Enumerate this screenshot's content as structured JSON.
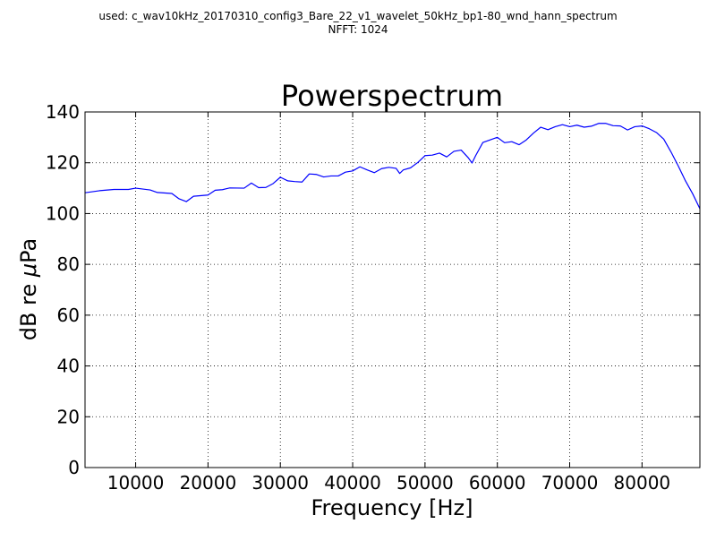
{
  "header": {
    "line1": "used: c_wav10kHz_20170310_config3_Bare_22_v1_wavelet_50kHz_bp1-80_wnd_hann_spectrum",
    "line2": "NFFT: 1024"
  },
  "colors": {
    "line": "#0000ff",
    "grid": "#000000",
    "axis": "#000000",
    "background": "#ffffff"
  },
  "chart_data": {
    "type": "line",
    "title": "Powerspectrum",
    "xlabel": "Frequency [Hz]",
    "ylabel_prefix": "dB re ",
    "ylabel_mu": "μ",
    "ylabel_suffix": "Pa",
    "xlim": [
      3000,
      88000
    ],
    "ylim": [
      0,
      140
    ],
    "xticks": [
      10000,
      20000,
      30000,
      40000,
      50000,
      60000,
      70000,
      80000
    ],
    "yticks": [
      0,
      20,
      40,
      60,
      80,
      100,
      120,
      140
    ],
    "grid": true,
    "series": [
      {
        "x": [
          3000,
          5000,
          7000,
          9000,
          10000,
          12000,
          13000,
          15000,
          16000,
          17000,
          18000,
          20000,
          21000,
          22000,
          23000,
          25000,
          26000,
          27000,
          28000,
          29000,
          30000,
          31000,
          32000,
          33000,
          34000,
          35000,
          36000,
          37000,
          38000,
          39000,
          40000,
          41000,
          42000,
          43000,
          44000,
          45000,
          46000,
          46500,
          47000,
          48000,
          49000,
          50000,
          51000,
          52000,
          53000,
          54000,
          55000,
          56000,
          56500,
          57000,
          58000,
          59000,
          60000,
          61000,
          62000,
          63000,
          64000,
          65000,
          66000,
          67000,
          68000,
          69000,
          70000,
          71000,
          72000,
          73000,
          74000,
          75000,
          76000,
          77000,
          78000,
          79000,
          80000,
          81000,
          82000,
          83000,
          84000,
          85000,
          86000,
          87000,
          88000
        ],
        "y": [
          108.2,
          109.0,
          109.5,
          109.5,
          110.0,
          109.3,
          108.3,
          107.9,
          105.8,
          104.7,
          106.8,
          107.3,
          109.2,
          109.4,
          110.1,
          110.0,
          112.0,
          110.2,
          110.3,
          111.8,
          114.3,
          112.9,
          112.6,
          112.4,
          115.6,
          115.4,
          114.4,
          114.8,
          114.8,
          116.3,
          116.8,
          118.4,
          117.2,
          116.1,
          117.7,
          118.2,
          117.8,
          115.8,
          117.2,
          118.0,
          120.1,
          122.8,
          123.0,
          123.8,
          122.3,
          124.5,
          125.0,
          121.9,
          119.9,
          122.8,
          128.0,
          129.0,
          130.0,
          127.9,
          128.3,
          127.1,
          129.0,
          131.7,
          134.0,
          133.0,
          134.2,
          135.0,
          134.2,
          134.8,
          134.0,
          134.4,
          135.5,
          135.5,
          134.6,
          134.5,
          132.9,
          134.2,
          134.5,
          133.4,
          131.9,
          129.3,
          124.3,
          118.8,
          112.9,
          107.8,
          101.9
        ]
      }
    ]
  }
}
